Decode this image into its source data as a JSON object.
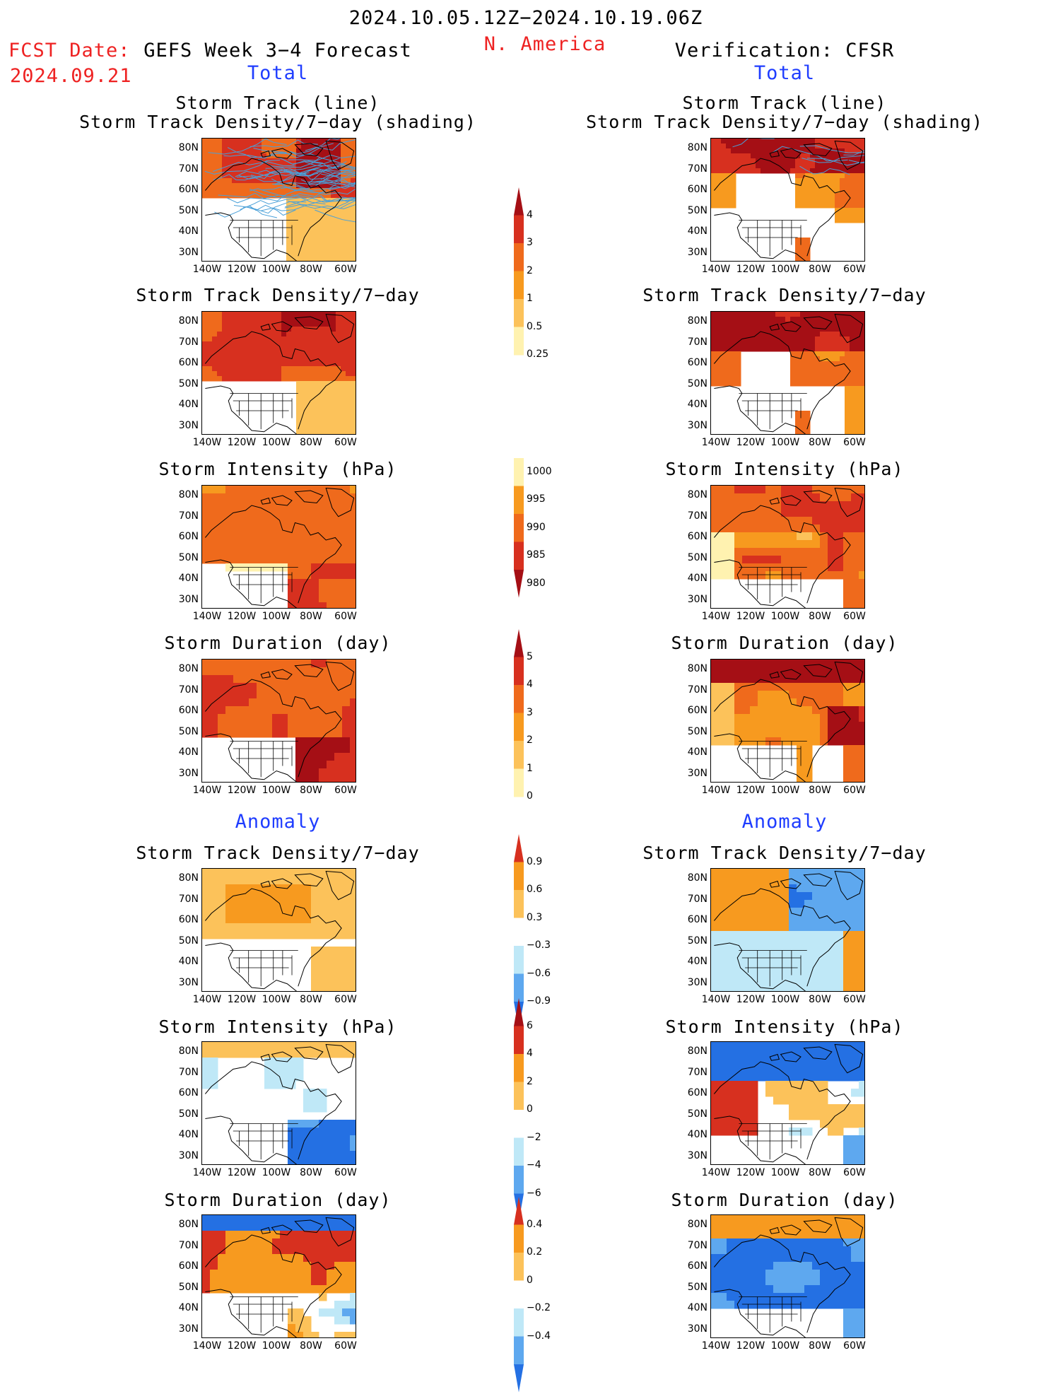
{
  "header": {
    "date_range": "2024.10.05.12Z−2024.10.19.06Z",
    "region": "N. America",
    "fcst_label": "FCST Date:",
    "fcst_date": "2024.09.21",
    "left_title": "GEFS Week 3−4 Forecast",
    "right_title": "Verification: CFSR",
    "total_label": "Total",
    "anomaly_label": "Anomaly"
  },
  "panel_titles": {
    "track_line": "Storm Track (line)",
    "track_shading": "Storm Track Density/7−day (shading)",
    "density": "Storm Track Density/7−day",
    "intensity": "Storm Intensity (hPa)",
    "duration": "Storm Duration (day)"
  },
  "axes": {
    "lat_ticks": [
      "80N",
      "70N",
      "60N",
      "50N",
      "40N",
      "30N"
    ],
    "lon_ticks": [
      "140W",
      "120W",
      "100W",
      "80W",
      "60W"
    ]
  },
  "colorbars": {
    "density_total": [
      "4",
      "3",
      "2",
      "1",
      "0.5",
      "0.25"
    ],
    "intensity_total": [
      "1000",
      "995",
      "990",
      "985",
      "980"
    ],
    "duration_total": [
      "5",
      "4",
      "3",
      "2",
      "1",
      "0"
    ],
    "density_anom": [
      "0.9",
      "0.6",
      "0.3",
      "−0.3",
      "−0.6",
      "−0.9"
    ],
    "intensity_anom": [
      "6",
      "4",
      "2",
      "0",
      "−2",
      "−4",
      "−6"
    ],
    "duration_anom": [
      "0.4",
      "0.2",
      "0",
      "−0.2",
      "−0.4"
    ]
  },
  "colors": {
    "dark_red": "#a50f15",
    "red": "#d7301f",
    "orange_red": "#ef6a1c",
    "orange": "#f79a1f",
    "gold": "#fcc25a",
    "pale_yellow": "#fff2b0",
    "light_blue": "#bfe8f7",
    "mid_blue": "#5ea8ef",
    "blue": "#2470e3",
    "track_line": "#4aa0d8",
    "header_red": "#ee2222",
    "header_blue": "#1f3dff"
  }
}
